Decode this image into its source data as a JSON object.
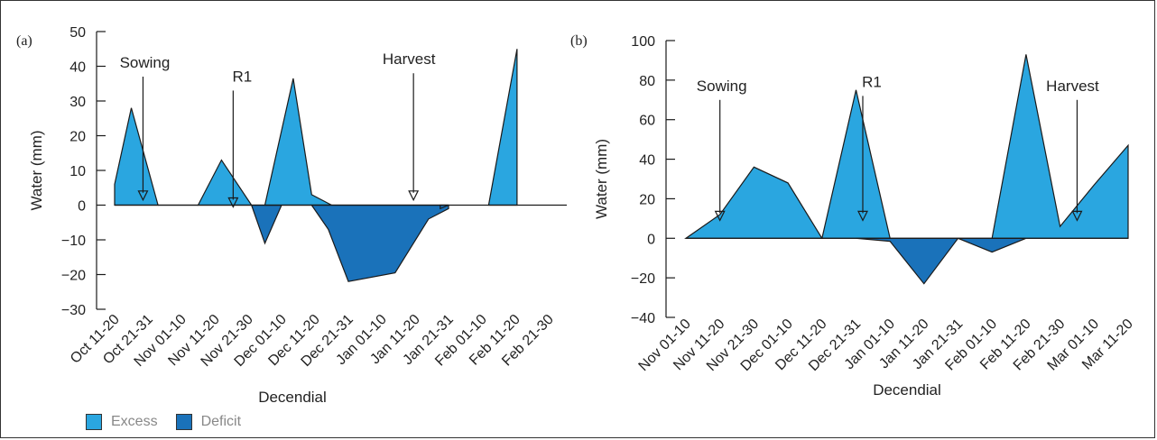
{
  "colors": {
    "excess": "#2aa6e0",
    "deficit": "#1a72ba",
    "line": "#1a1a1a"
  },
  "legend": [
    {
      "label": "Excess",
      "color": "#2aa6e0"
    },
    {
      "label": "Deficit",
      "color": "#1a72ba"
    }
  ],
  "chart_data": [
    {
      "type": "area",
      "panel": "(a)",
      "xlabel": "Decendial",
      "ylabel": "Water (mm)",
      "ylim": [
        -30,
        50
      ],
      "yticks": [
        "50",
        "40",
        "30",
        "20",
        "10",
        "0",
        "−10",
        "−20",
        "−30"
      ],
      "yticks_values": [
        50,
        40,
        30,
        20,
        10,
        0,
        -10,
        -20,
        -30
      ],
      "categories": [
        "Oct 11-20",
        "Oct 21-31",
        "Nov 01-10",
        "Nov 11-20",
        "Nov 21-30",
        "Dec 01-10",
        "Dec 11-20",
        "Dec 21-31",
        "Jan 01-10",
        "Jan 11-20",
        "Jan 21-31",
        "Feb 01-10",
        "Feb 11-20",
        "Feb 21-30"
      ],
      "series": [
        {
          "name": "Excess",
          "points": [
            [
              0,
              0
            ],
            [
              0,
              6
            ],
            [
              0.5,
              28
            ],
            [
              1.3,
              0
            ],
            [
              2.5,
              0
            ],
            [
              3.2,
              13
            ],
            [
              4.1,
              0
            ],
            [
              4.5,
              0
            ],
            [
              5.35,
              36.5
            ],
            [
              5.9,
              3
            ],
            [
              6.5,
              0
            ]
          ],
          "start_points": [
            [
              11.6,
              0
            ],
            [
              12.05,
              45
            ],
            [
              12.05,
              0
            ]
          ]
        },
        {
          "name": "Deficit",
          "points": [
            [
              4.1,
              0
            ],
            [
              4.5,
              -11
            ],
            [
              5.0,
              0
            ]
          ],
          "points2": [
            [
              5.9,
              0
            ],
            [
              6.4,
              -7
            ],
            [
              7.0,
              -22
            ],
            [
              8.4,
              -19.5
            ],
            [
              9.4,
              -4
            ],
            [
              10.0,
              -1
            ],
            [
              10.0,
              0
            ]
          ]
        }
      ],
      "annotations": [
        {
          "text": "Sowing",
          "x": 0.85,
          "y_from": 37,
          "y_to": 2
        },
        {
          "text": "R1",
          "x": 3.55,
          "y_from": 33,
          "y_to": 0
        },
        {
          "text": "Harvest",
          "x": 8.95,
          "y_from": 38,
          "y_to": 2
        }
      ]
    },
    {
      "type": "area",
      "panel": "(b)",
      "xlabel": "Decendial",
      "ylabel": "Water (mm)",
      "ylim": [
        -40,
        100
      ],
      "yticks": [
        "100",
        "80",
        "60",
        "40",
        "20",
        "0",
        "−20",
        "−40"
      ],
      "yticks_values": [
        100,
        80,
        60,
        40,
        20,
        0,
        -20,
        -40
      ],
      "categories": [
        "Nov 01-10",
        "Nov 11-20",
        "Nov 21-30",
        "Dec 01-10",
        "Dec 11-20",
        "Dec 21-31",
        "Jan 01-10",
        "Jan 11-20",
        "Jan 21-31",
        "Feb 01-10",
        "Feb 11-20",
        "Feb 21-30",
        "Mar 01-10",
        "Mar 11-20"
      ],
      "annotations": [
        {
          "text": "Sowing",
          "x": 1.0,
          "y_from": 70,
          "y_to": 10
        },
        {
          "text": "R1",
          "x": 5.2,
          "y_from": 72,
          "y_to": 10
        },
        {
          "text": "Harvest",
          "x": 11.5,
          "y_from": 70,
          "y_to": 10
        }
      ]
    }
  ]
}
